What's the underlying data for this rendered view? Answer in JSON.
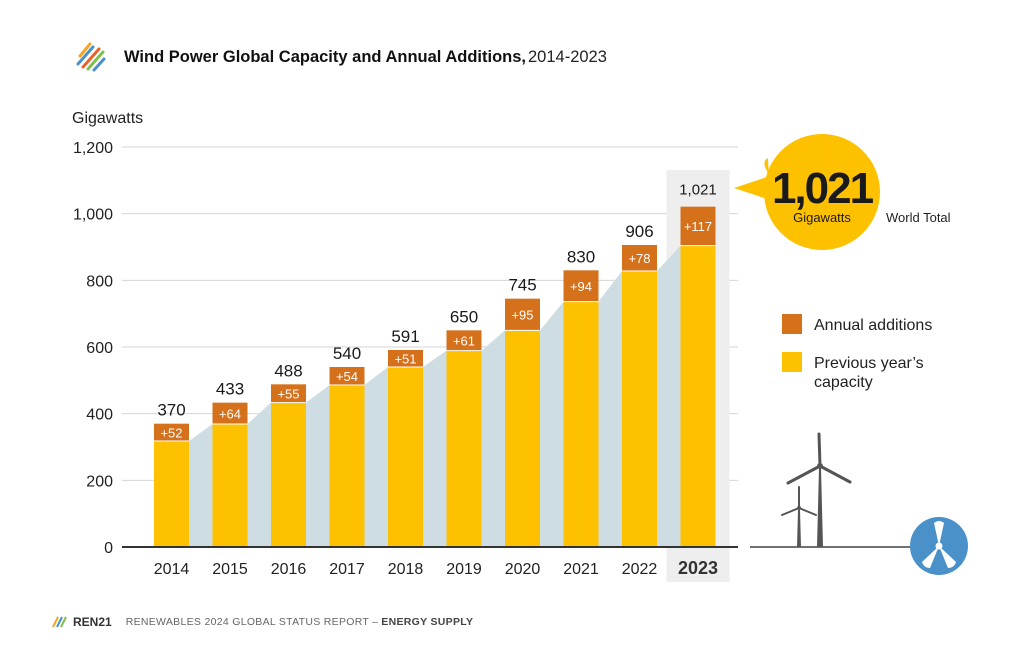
{
  "header": {
    "title": "Wind Power Global Capacity and Annual Additions,",
    "subtitle": "2014-2023"
  },
  "footer": {
    "brand": "REN21",
    "report": "RENEWABLES 2024 GLOBAL STATUS REPORT –",
    "section": "ENERGY SUPPLY"
  },
  "colors": {
    "annual_additions": "#D4711A",
    "previous_capacity": "#FDC100",
    "area_fill": "#CDDDE2",
    "highlight_column": "#EEEEEE",
    "callout": "#FDC100",
    "icon_blue": "#4A90C9"
  },
  "chart_data": {
    "type": "bar",
    "stacked": true,
    "ylabel": "Gigawatts",
    "ylim": [
      0,
      1200
    ],
    "yticks": [
      "0",
      "200",
      "400",
      "600",
      "800",
      "1,000",
      "1,200"
    ],
    "ytick_values": [
      0,
      200,
      400,
      600,
      800,
      1000,
      1200
    ],
    "grid": true,
    "categories": [
      "2014",
      "2015",
      "2016",
      "2017",
      "2018",
      "2019",
      "2020",
      "2021",
      "2022",
      "2023"
    ],
    "highlight_category": "2023",
    "series": [
      {
        "name": "Previous year’s capacity",
        "values": [
          318,
          369,
          433,
          486,
          540,
          589,
          650,
          736,
          828,
          904
        ]
      },
      {
        "name": "Annual additions",
        "values": [
          52,
          64,
          55,
          54,
          51,
          61,
          95,
          94,
          78,
          117
        ]
      }
    ],
    "totals": [
      370,
      433,
      488,
      540,
      591,
      650,
      745,
      830,
      906,
      1021
    ],
    "total_labels": [
      "370",
      "433",
      "488",
      "540",
      "591",
      "650",
      "745",
      "830",
      "906",
      "1,021"
    ],
    "addition_labels": [
      "+52",
      "+64",
      "+55",
      "+54",
      "+51",
      "+61",
      "+95",
      "+94",
      "+78",
      "+117"
    ],
    "legend": {
      "position": "right",
      "items": [
        "Annual additions",
        "Previous year’s\ncapacity"
      ]
    },
    "callout": {
      "value": "1,021",
      "unit": "Gigawatts",
      "label": "World Total"
    }
  }
}
